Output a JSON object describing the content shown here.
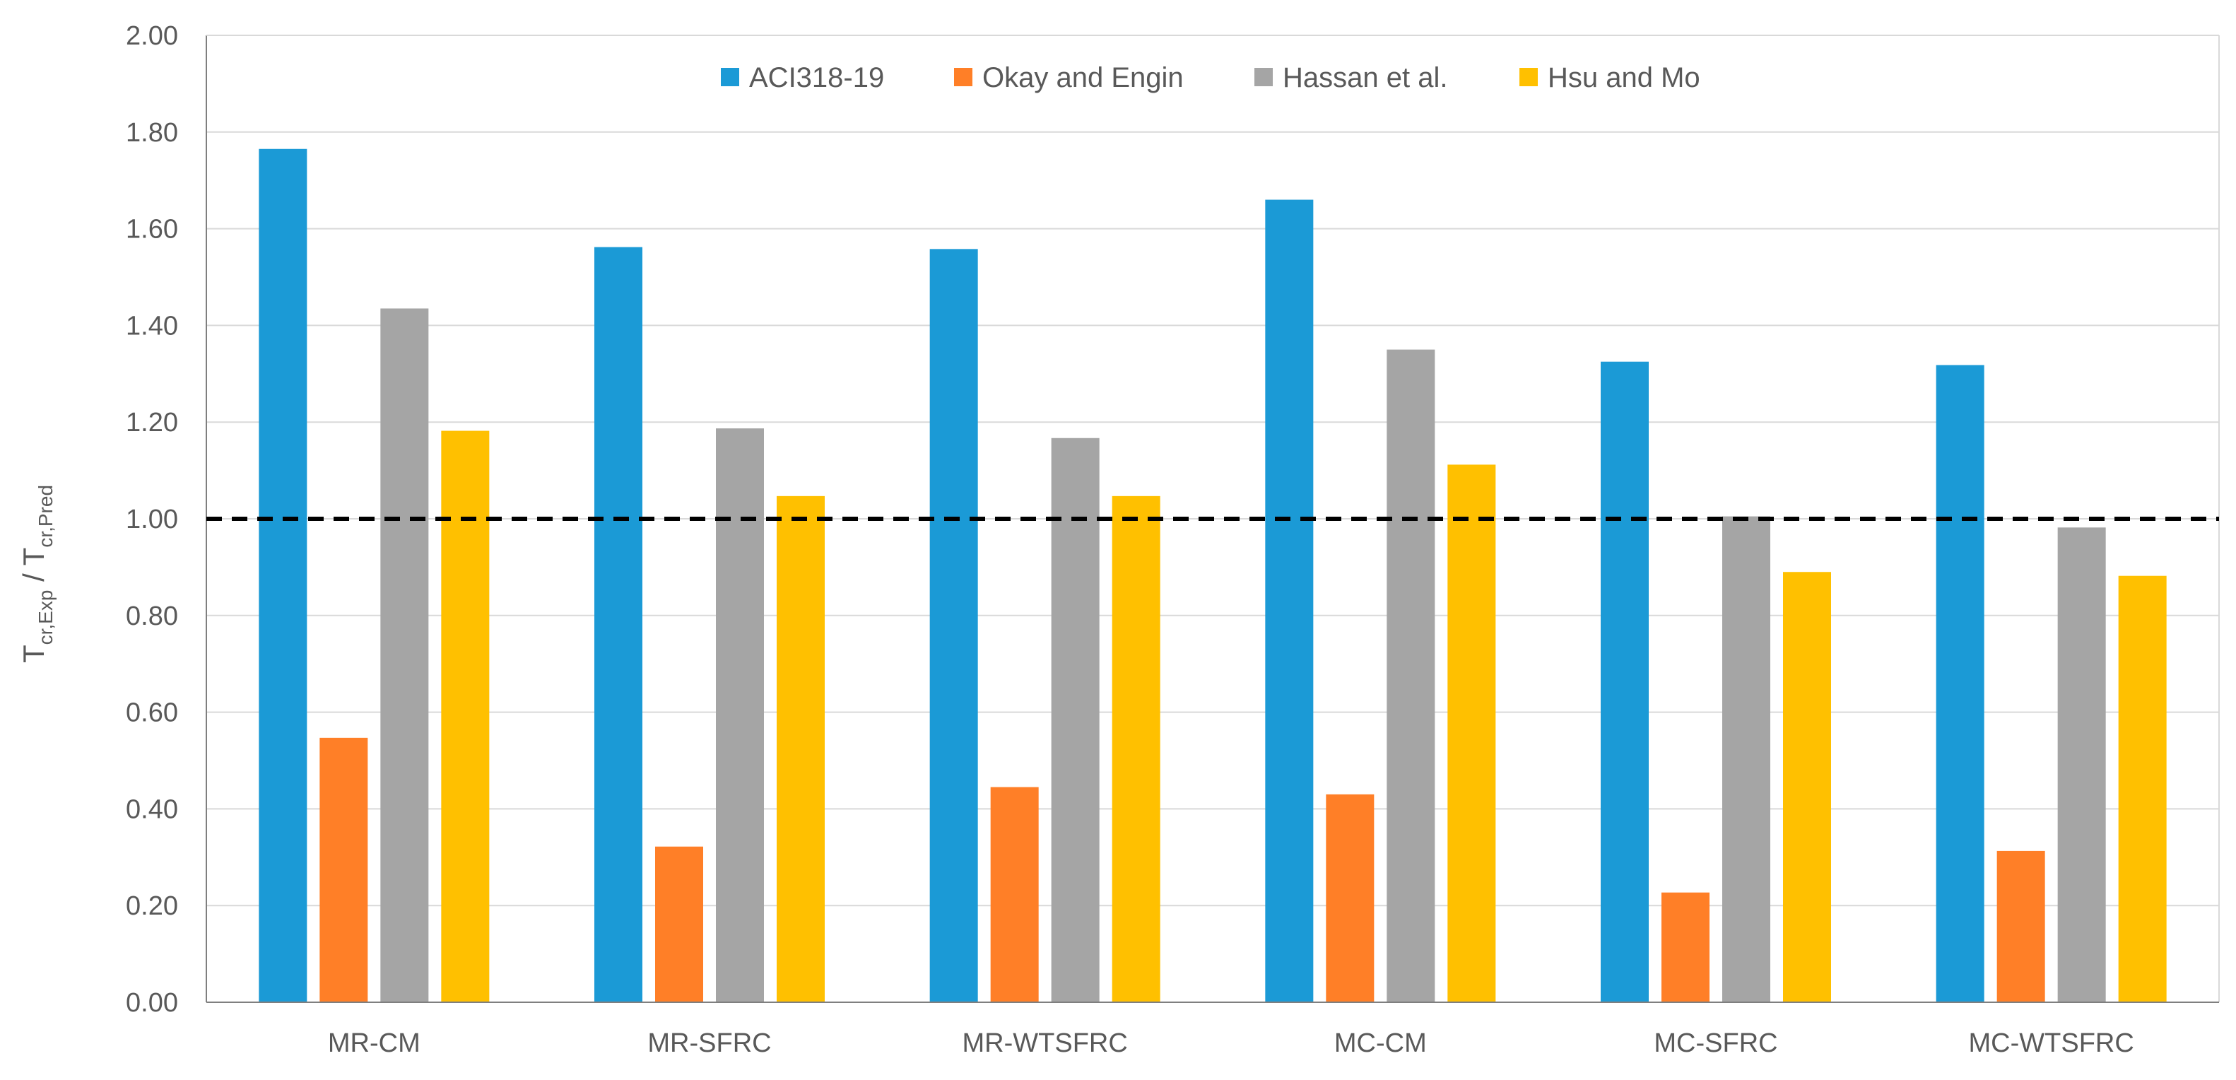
{
  "chart_data": {
    "type": "bar",
    "title": "",
    "xlabel": "",
    "ylabel": {
      "main": "T",
      "sub1": "cr,Exp",
      "sep": " / T",
      "sub2": "cr,Pred"
    },
    "ylim": [
      0,
      2
    ],
    "yticks": [
      "0.00",
      "0.20",
      "0.40",
      "0.60",
      "0.80",
      "1.00",
      "1.20",
      "1.40",
      "1.60",
      "1.80",
      "2.00"
    ],
    "categories": [
      "MR-CM",
      "MR-SFRC",
      "MR-WTSFRC",
      "MC-CM",
      "MC-SFRC",
      "MC-WTSFRC"
    ],
    "series": [
      {
        "name": "ACI318-19",
        "color": "#1B9AD6",
        "values": [
          1.765,
          1.562,
          1.558,
          1.66,
          1.325,
          1.318
        ]
      },
      {
        "name": "Okay and Engin",
        "color": "#FF7F27",
        "values": [
          0.547,
          0.322,
          0.445,
          0.43,
          0.227,
          0.313
        ]
      },
      {
        "name": "Hassan et al.",
        "color": "#A5A5A5",
        "values": [
          1.435,
          1.187,
          1.167,
          1.35,
          1.005,
          0.982
        ]
      },
      {
        "name": "Hsu and Mo",
        "color": "#FFC000",
        "values": [
          1.182,
          1.047,
          1.047,
          1.112,
          0.89,
          0.882
        ]
      }
    ],
    "reference_line": {
      "value": 1.0,
      "style": "dashed",
      "color": "#000000"
    },
    "legend_position": "top-center",
    "grid": true,
    "gridline_color": "#D9D9D9",
    "axis_color": "#7F7F7F"
  }
}
